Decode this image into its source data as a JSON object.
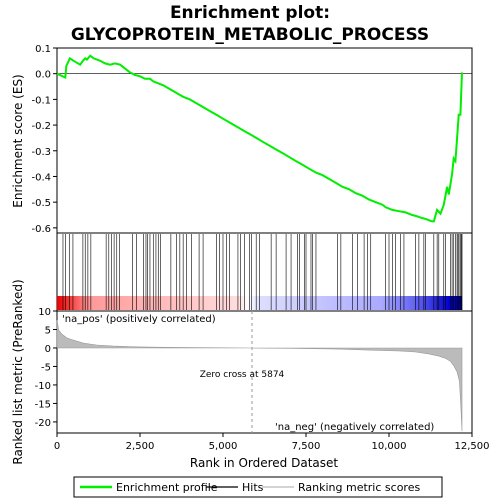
{
  "chart_data": {
    "type": "line",
    "title": "Enrichment plot:\nGLYCOPROTEIN_METABOLIC_PROCESS",
    "top_panel": {
      "ylabel": "Enrichment score (ES)",
      "ylim": [
        -0.62,
        0.1
      ],
      "yticks": [
        0.1,
        0.0,
        -0.1,
        -0.2,
        -0.3,
        -0.4,
        -0.5,
        -0.6
      ],
      "ytick_labels": [
        "0.1",
        "0.0",
        "-0.1",
        "-0.2",
        "-0.3",
        "-0.4",
        "-0.5",
        "-0.6"
      ],
      "series": [
        {
          "name": "Enrichment profile",
          "color": "#00ee00",
          "x": [
            0,
            250,
            280,
            390,
            500,
            700,
            780,
            850,
            900,
            1000,
            1100,
            1300,
            1450,
            1600,
            1750,
            1900,
            2050,
            2200,
            2350,
            2500,
            2650,
            2800,
            2900,
            3000,
            3200,
            3400,
            3600,
            3800,
            4000,
            4200,
            4400,
            4600,
            4800,
            5000,
            5200,
            5400,
            5600,
            5874,
            6000,
            6200,
            6400,
            6600,
            6800,
            7000,
            7200,
            7400,
            7600,
            7800,
            8000,
            8200,
            8400,
            8600,
            8800,
            9000,
            9200,
            9400,
            9600,
            9800,
            9900,
            10000,
            10100,
            10300,
            10500,
            10700,
            10850,
            10950,
            11100,
            11200,
            11300,
            11350,
            11450,
            11550,
            11650,
            11750,
            11800,
            11900,
            11950,
            12000,
            12050,
            12100,
            12150,
            12200
          ],
          "y": [
            0.0,
            -0.015,
            0.03,
            0.06,
            0.05,
            0.035,
            0.05,
            0.06,
            0.055,
            0.07,
            0.06,
            0.05,
            0.04,
            0.035,
            0.04,
            0.035,
            0.02,
            0.005,
            -0.005,
            -0.01,
            -0.02,
            -0.02,
            -0.03,
            -0.035,
            -0.045,
            -0.06,
            -0.075,
            -0.09,
            -0.1,
            -0.115,
            -0.13,
            -0.145,
            -0.16,
            -0.175,
            -0.19,
            -0.205,
            -0.22,
            -0.24,
            -0.25,
            -0.265,
            -0.28,
            -0.295,
            -0.31,
            -0.325,
            -0.34,
            -0.355,
            -0.37,
            -0.385,
            -0.395,
            -0.41,
            -0.425,
            -0.44,
            -0.45,
            -0.465,
            -0.475,
            -0.49,
            -0.5,
            -0.51,
            -0.52,
            -0.525,
            -0.53,
            -0.535,
            -0.54,
            -0.55,
            -0.555,
            -0.56,
            -0.565,
            -0.57,
            -0.575,
            -0.575,
            -0.53,
            -0.545,
            -0.51,
            -0.44,
            -0.47,
            -0.39,
            -0.33,
            -0.34,
            -0.25,
            -0.16,
            -0.16,
            0.005
          ]
        }
      ]
    },
    "hits_panel": {
      "hit_positions": [
        180,
        260,
        370,
        480,
        780,
        850,
        930,
        1020,
        1480,
        1560,
        1640,
        1720,
        1800,
        1880,
        2280,
        2400,
        2600,
        2680,
        2730,
        2800,
        2900,
        2980,
        3050,
        3120,
        3430,
        3600,
        3700,
        3800,
        3900,
        4050,
        4280,
        4400,
        4800,
        4900,
        5000,
        5100,
        5200,
        5450,
        5530,
        5650,
        5800,
        5860,
        6000,
        6100,
        6450,
        6600,
        6900,
        7050,
        7250,
        7300,
        7450,
        7500,
        7650,
        7700,
        7800,
        8450,
        8550,
        8900,
        9050,
        9250,
        9350,
        9450,
        9900,
        10000,
        10100,
        10200,
        10350,
        10450,
        10800,
        10900,
        11050,
        11100,
        11350,
        11450,
        11500,
        11650,
        11700,
        11850,
        11900,
        11950,
        12000,
        12050,
        12080,
        12110,
        12150,
        12180,
        12200
      ]
    },
    "bottom_panel": {
      "ylabel": "Ranked list metric (PreRanked)",
      "xlabel": "Rank in Ordered Dataset",
      "ylim": [
        -23,
        10
      ],
      "yticks": [
        10,
        5,
        0,
        -5,
        -10,
        -15,
        -20
      ],
      "ytick_labels": [
        "10",
        "5",
        "0",
        "-5",
        "-10",
        "-15",
        "-20"
      ],
      "xlim": [
        0,
        12500
      ],
      "xticks": [
        0,
        2500,
        5000,
        7500,
        10000,
        12500
      ],
      "xtick_labels": [
        "0",
        "2,500",
        "5,000",
        "7,500",
        "10,000",
        "12,500"
      ],
      "metric_profile": {
        "x": [
          0,
          50,
          150,
          300,
          500,
          800,
          1200,
          1700,
          2500,
          3500,
          5000,
          5874,
          7000,
          8500,
          9500,
          10300,
          10800,
          11200,
          11500,
          11700,
          11850,
          11950,
          12050,
          12120,
          12160,
          12200
        ],
        "y": [
          7.5,
          4.8,
          3.7,
          2.7,
          2.1,
          1.3,
          0.8,
          0.5,
          0.3,
          0.15,
          0.05,
          0.0,
          -0.1,
          -0.3,
          -0.6,
          -0.8,
          -1.1,
          -1.6,
          -2.2,
          -2.8,
          -3.6,
          -4.8,
          -6.5,
          -9.0,
          -15.0,
          -22.5
        ]
      },
      "zero_cross_label": "Zero cross at 5874",
      "zero_cross": 5874,
      "pos_label": "'na_pos' (positively correlated)",
      "neg_label": "'na_neg' (negatively correlated)",
      "pos_color": "#cc0000",
      "neg_color": "#0000cc"
    },
    "legend": [
      {
        "label": "Enrichment profile",
        "color": "#00ee00"
      },
      {
        "label": "Hits",
        "color": "#000000"
      },
      {
        "label": "Ranking metric scores",
        "color": "#bbbbbb"
      }
    ],
    "legend_placement": "bottom",
    "grid": false
  }
}
